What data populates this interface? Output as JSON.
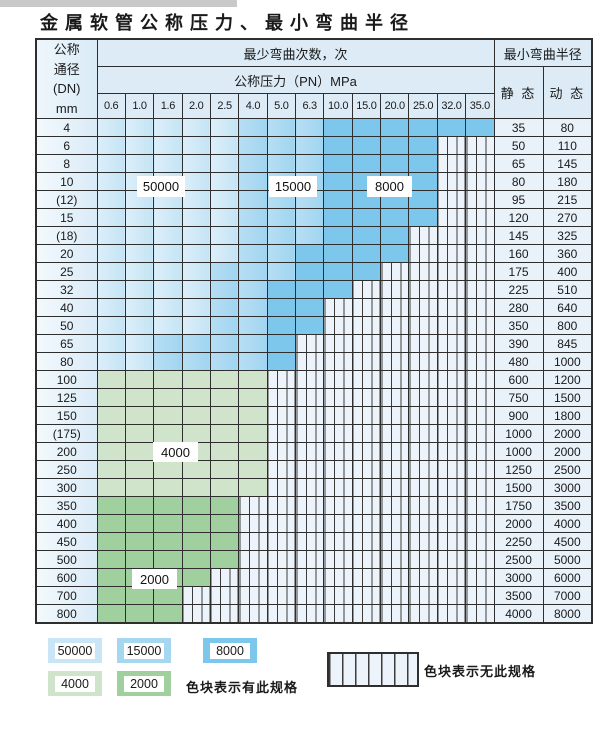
{
  "page": {
    "title": "金属软管公称压力、最小弯曲半径"
  },
  "table": {
    "corner_lines": [
      "公称",
      "通径",
      "(DN)",
      "mm"
    ],
    "cycles_header": "最少弯曲次数，次",
    "pressure_header": "公称压力（PN）MPa",
    "radius_header": "最小弯曲半径",
    "static_label": "静 态",
    "dynamic_label": "动 态",
    "pressures": [
      "0.6",
      "1.0",
      "1.6",
      "2.0",
      "2.5",
      "4.0",
      "5.0",
      "6.3",
      "10.0",
      "15.0",
      "20.0",
      "25.0",
      "32.0",
      "35.0"
    ],
    "rows": [
      {
        "dn": "4",
        "cells": "lllllmmmdddddd",
        "static": "35",
        "dynamic": "80"
      },
      {
        "dn": "6",
        "cells": "lllllmmmddddhh",
        "static": "50",
        "dynamic": "110"
      },
      {
        "dn": "8",
        "cells": "lllllmmmddddhh",
        "static": "65",
        "dynamic": "145"
      },
      {
        "dn": "10",
        "cells": "lllllmmmddddhh",
        "static": "80",
        "dynamic": "180"
      },
      {
        "dn": "(12)",
        "cells": "lllllmmmddddhh",
        "static": "95",
        "dynamic": "215"
      },
      {
        "dn": "15",
        "cells": "lllllmmmddddhh",
        "static": "120",
        "dynamic": "270"
      },
      {
        "dn": "(18)",
        "cells": "lllllmmmdddhhh",
        "static": "145",
        "dynamic": "325"
      },
      {
        "dn": "20",
        "cells": "lllllmmddddhhh",
        "static": "160",
        "dynamic": "360"
      },
      {
        "dn": "25",
        "cells": "llllmmmdddhhhh",
        "static": "175",
        "dynamic": "400"
      },
      {
        "dn": "32",
        "cells": "llllmmdddhhhhh",
        "static": "225",
        "dynamic": "510"
      },
      {
        "dn": "40",
        "cells": "llllmmddhhhhhh",
        "static": "280",
        "dynamic": "640"
      },
      {
        "dn": "50",
        "cells": "llllmmddhhhhhh",
        "static": "350",
        "dynamic": "800"
      },
      {
        "dn": "65",
        "cells": "llmmmmdhhhhhhh",
        "static": "390",
        "dynamic": "845"
      },
      {
        "dn": "80",
        "cells": "llmmmmdhhhhhhh",
        "static": "480",
        "dynamic": "1000"
      },
      {
        "dn": "100",
        "cells": "gggggghhhhhhhh",
        "static": "600",
        "dynamic": "1200"
      },
      {
        "dn": "125",
        "cells": "gggggghhhhhhhh",
        "static": "750",
        "dynamic": "1500"
      },
      {
        "dn": "150",
        "cells": "gggggghhhhhhhh",
        "static": "900",
        "dynamic": "1800"
      },
      {
        "dn": "(175)",
        "cells": "gggggghhhhhhhh",
        "static": "1000",
        "dynamic": "2000"
      },
      {
        "dn": "200",
        "cells": "gggggghhhhhhhh",
        "static": "1000",
        "dynamic": "2000"
      },
      {
        "dn": "250",
        "cells": "gggggghhhhhhhh",
        "static": "1250",
        "dynamic": "2500"
      },
      {
        "dn": "300",
        "cells": "gggggghhhhhhhh",
        "static": "1500",
        "dynamic": "3000"
      },
      {
        "dn": "350",
        "cells": "eeeeehhhhhhhhh",
        "static": "1750",
        "dynamic": "3500"
      },
      {
        "dn": "400",
        "cells": "eeeeehhhhhhhhh",
        "static": "2000",
        "dynamic": "4000"
      },
      {
        "dn": "450",
        "cells": "eeeeehhhhhhhhh",
        "static": "2250",
        "dynamic": "4500"
      },
      {
        "dn": "500",
        "cells": "eeeeehhhhhhhhh",
        "static": "2500",
        "dynamic": "5000"
      },
      {
        "dn": "600",
        "cells": "eeeehhhhhhhhhh",
        "static": "3000",
        "dynamic": "6000"
      },
      {
        "dn": "700",
        "cells": "eeehhhhhhhhhhh",
        "static": "3500",
        "dynamic": "7000"
      },
      {
        "dn": "800",
        "cells": "eeehhhhhhhhhhh",
        "static": "4000",
        "dynamic": "8000"
      }
    ]
  },
  "region_labels": [
    {
      "text": "50000"
    },
    {
      "text": "15000"
    },
    {
      "text": "8000"
    },
    {
      "text": "4000"
    },
    {
      "text": "2000"
    }
  ],
  "legend": {
    "row1": [
      {
        "value": "50000",
        "code": "l"
      },
      {
        "value": "15000",
        "code": "m"
      },
      {
        "value": "8000",
        "code": "d"
      }
    ],
    "row2": [
      {
        "value": "4000",
        "code": "g"
      },
      {
        "value": "2000",
        "code": "e"
      }
    ],
    "present_note": "色块表示有此规格",
    "absent_note": "色块表示无此规格"
  },
  "colors": {
    "cycles_50000": "#c9e5f6",
    "cycles_15000": "#a5d7f1",
    "cycles_8000": "#7dc6ec",
    "cycles_4000": "#cfe4ca",
    "cycles_2000": "#a0d09e",
    "no_spec_bg": "#edf3fa",
    "grid_line": "#2e2e2e"
  },
  "chart_data": {
    "type": "table",
    "title": "金属软管公称压力、最小弯曲半径",
    "pressure_columns_MPa": [
      0.6,
      1.0,
      1.6,
      2.0,
      2.5,
      4.0,
      5.0,
      6.3,
      10.0,
      15.0,
      20.0,
      25.0,
      32.0,
      35.0
    ],
    "dn_mm": [
      "4",
      "6",
      "8",
      "10",
      "(12)",
      "15",
      "(18)",
      "20",
      "25",
      "32",
      "40",
      "50",
      "65",
      "80",
      "100",
      "125",
      "150",
      "(175)",
      "200",
      "250",
      "300",
      "350",
      "400",
      "450",
      "500",
      "600",
      "700",
      "800"
    ],
    "static_bend_radius_mm": [
      35,
      50,
      65,
      80,
      95,
      120,
      145,
      160,
      175,
      225,
      280,
      350,
      390,
      480,
      600,
      750,
      900,
      1000,
      1000,
      1250,
      1500,
      1750,
      2000,
      2250,
      2500,
      3000,
      3500,
      4000
    ],
    "dynamic_bend_radius_mm": [
      80,
      110,
      145,
      180,
      215,
      270,
      325,
      360,
      400,
      510,
      640,
      800,
      845,
      1000,
      1200,
      1500,
      1800,
      2000,
      2000,
      2500,
      3000,
      3500,
      4000,
      4500,
      5000,
      6000,
      7000,
      8000
    ],
    "max_pressure_with_spec_MPa": [
      35,
      25,
      25,
      25,
      25,
      25,
      20,
      20,
      15,
      10,
      6.3,
      6.3,
      5,
      5,
      4,
      4,
      4,
      4,
      4,
      4,
      4,
      2.5,
      2.5,
      2.5,
      2.5,
      2,
      1.6,
      1.6
    ],
    "cell_code_meaning": {
      "l": "50000",
      "m": "15000",
      "d": "8000",
      "g": "4000",
      "e": "2000",
      "h": "无此规格"
    }
  }
}
